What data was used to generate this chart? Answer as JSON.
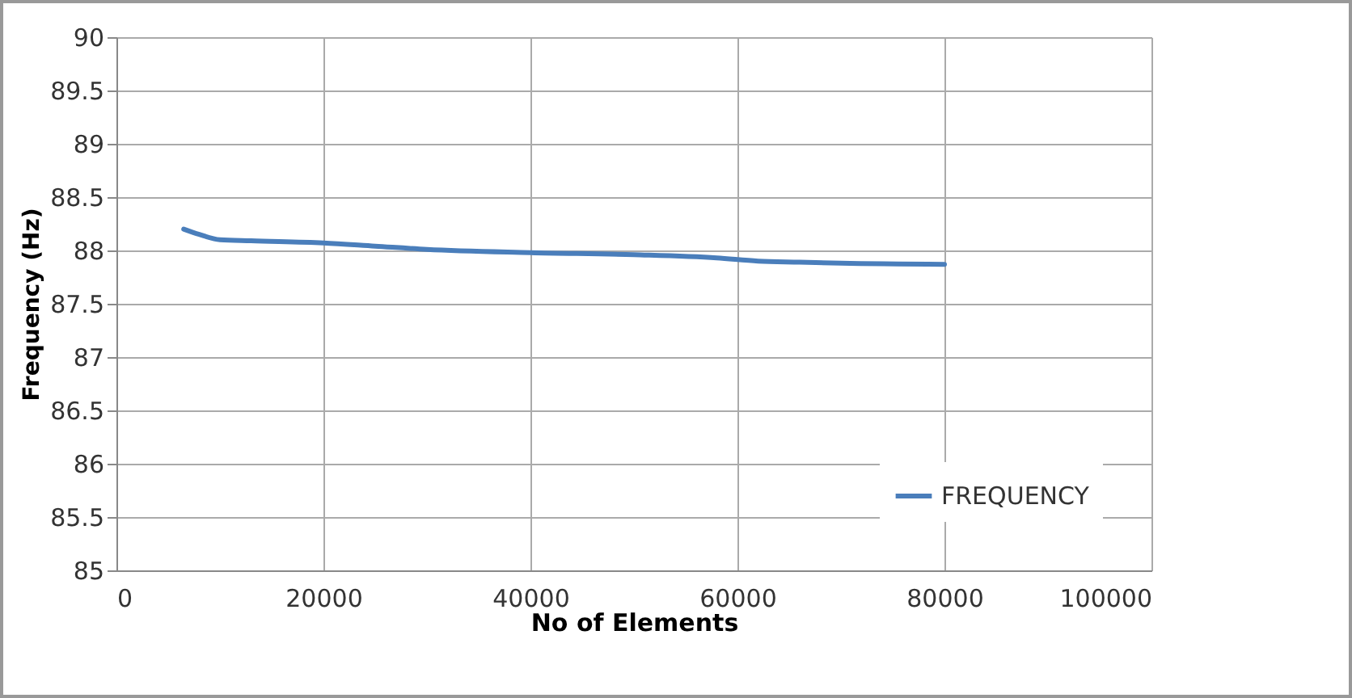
{
  "chart_data": {
    "type": "line",
    "xlabel": "No of Elements",
    "ylabel": "Frequency (Hz)",
    "x": [
      6500,
      8000,
      10000,
      13000,
      20000,
      25000,
      30000,
      40000,
      50000,
      58000,
      62000,
      66000,
      70000,
      80000
    ],
    "series": [
      {
        "name": "FREQUENCY",
        "color": "#4a7ebb",
        "values": [
          88.2,
          88.15,
          88.1,
          88.09,
          88.07,
          88.04,
          88.01,
          87.98,
          87.96,
          87.93,
          87.9,
          87.89,
          87.88,
          87.87
        ]
      }
    ],
    "xlim": [
      0,
      100000
    ],
    "xticks": [
      0,
      20000,
      40000,
      60000,
      80000,
      100000
    ],
    "ylim": [
      85,
      90
    ],
    "yticks": [
      85,
      85.5,
      86,
      86.5,
      87,
      87.5,
      88,
      88.5,
      89,
      89.5,
      90
    ],
    "grid": true,
    "legend": "bottom right",
    "marker": "none",
    "line_style": "solid"
  }
}
